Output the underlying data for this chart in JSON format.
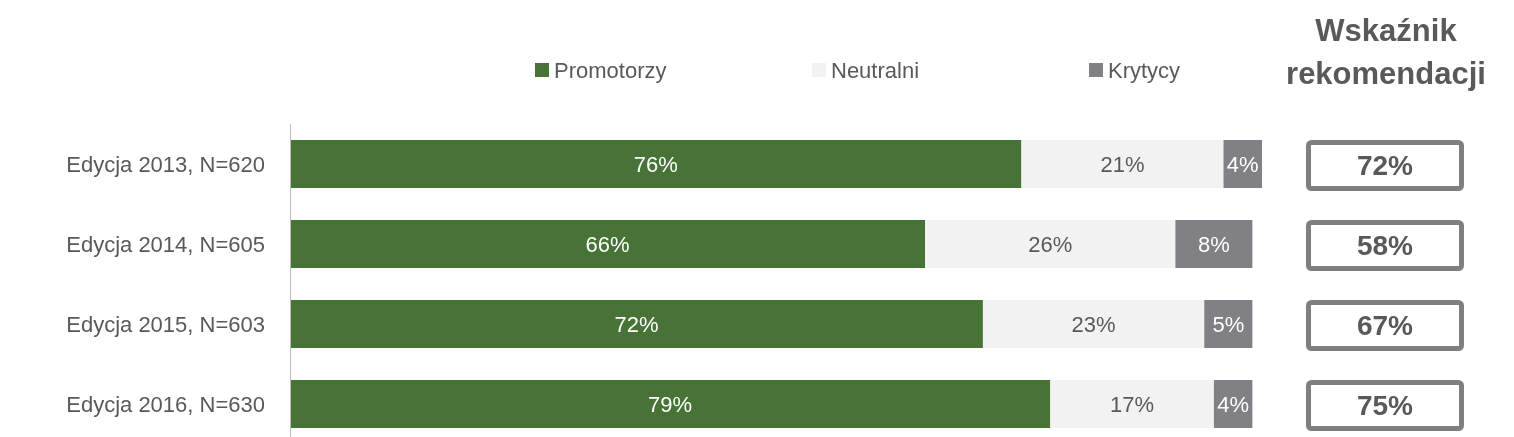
{
  "chart_data": [
    {
      "type": "bar",
      "orientation": "horizontal",
      "stacked": true,
      "legend": "top",
      "categories": [
        "Edycja 2013, N=620",
        "Edycja 2014, N=605",
        "Edycja 2015, N=603",
        "Edycja 2016, N=630"
      ],
      "series": [
        {
          "name": "Promotorzy",
          "color": "#477337",
          "values": [
            76,
            66,
            72,
            79
          ],
          "value_labels": [
            "76%",
            "66%",
            "72%",
            "79%"
          ]
        },
        {
          "name": "Neutralni",
          "color": "#f2f2f2",
          "values": [
            21,
            26,
            23,
            17
          ],
          "value_labels": [
            "21%",
            "26%",
            "23%",
            "17%"
          ]
        },
        {
          "name": "Krytycy",
          "color": "#808085",
          "values": [
            4,
            8,
            5,
            4
          ],
          "value_labels": [
            "4%",
            "8%",
            "5%",
            "4%"
          ]
        }
      ]
    },
    {
      "type": "other",
      "title": "Wskaźnik rekomendacji",
      "annotations": [
        "72%",
        "58%",
        "67%",
        "75%"
      ]
    }
  ]
}
